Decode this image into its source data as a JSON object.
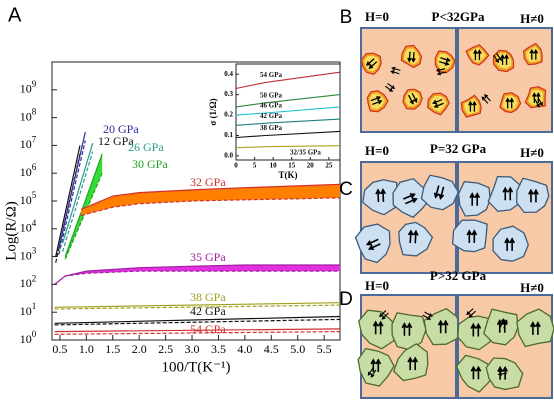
{
  "chart_data": [
    {
      "type": "line",
      "panel_label": "A",
      "ylabel": "Log(R/Ω)",
      "xlabel": "100/T(K⁻¹)",
      "log_y": true,
      "xlim": [
        0.35,
        5.8
      ],
      "ylim": [
        1,
        10000000000
      ],
      "xticks": [
        0.5,
        {
          "value": 1,
          "label": "1.0"
        },
        1.5,
        {
          "value": 2,
          "label": "2.0"
        },
        2.5,
        {
          "value": 3,
          "label": "3.0"
        },
        3.5,
        {
          "value": 4,
          "label": "4.0"
        },
        4.5,
        {
          "value": 5,
          "label": "5.0"
        },
        5.5
      ],
      "yticks": [
        {
          "value": 1,
          "label": "10",
          "power": "0"
        },
        {
          "value": 10,
          "label": "10",
          "power": "1"
        },
        {
          "value": 100,
          "label": "10",
          "power": "2"
        },
        {
          "value": 1000,
          "label": "10",
          "power": "3"
        },
        {
          "value": 10000,
          "label": "10",
          "power": "4"
        },
        {
          "value": 100000,
          "label": "10",
          "power": "5"
        },
        {
          "value": 1000000,
          "label": "10",
          "power": "6"
        },
        {
          "value": 10000000,
          "label": "10",
          "power": "7"
        },
        {
          "value": 100000000,
          "label": "10",
          "power": "8"
        },
        {
          "value": 1000000000,
          "label": "10",
          "power": "9"
        }
      ],
      "series": [
        {
          "name": "12 GPa",
          "color": "#111111",
          "x": [
            0.42,
            0.88
          ],
          "values": [
            1000,
            10000000
          ],
          "low": [
            600,
            5000000
          ]
        },
        {
          "name": "20 GPa",
          "color": "#2a2a9a",
          "x": [
            0.48,
            0.98
          ],
          "values": [
            2000,
            30000000
          ],
          "low": [
            1200,
            15000000
          ]
        },
        {
          "name": "26 GPa",
          "color": "#2a9a90",
          "x": [
            0.55,
            1.12
          ],
          "values": [
            3000,
            12000000
          ],
          "low": [
            1500,
            6000000
          ]
        },
        {
          "name": "30 GPa",
          "color": "#22a022",
          "fill": "#33dd33",
          "x": [
            0.6,
            1.3
          ],
          "values": [
            1000,
            5000000
          ],
          "low": [
            800,
            1000000
          ]
        },
        {
          "name": "32 GPa",
          "color": "#d03030",
          "fill": "#ff8000",
          "x": [
            0.9,
            1.5,
            2,
            3,
            4,
            5,
            5.8
          ],
          "values": [
            50000,
            150000,
            200000,
            250000,
            300000,
            350000,
            400000
          ],
          "low": [
            30000,
            60000,
            80000,
            100000,
            110000,
            120000,
            130000
          ]
        },
        {
          "name": "35 GPa",
          "color": "#a020a0",
          "fill": "#e030e0",
          "x": [
            0.4,
            0.6,
            1,
            2,
            3,
            4,
            5,
            5.8
          ],
          "values": [
            100,
            200,
            300,
            400,
            450,
            500,
            500,
            500
          ],
          "low": [
            100,
            200,
            250,
            300,
            300,
            300,
            300,
            300
          ]
        },
        {
          "name": "38 GPa",
          "color": "#a0a020",
          "x": [
            0.4,
            5.8
          ],
          "values": [
            15,
            22
          ],
          "low": [
            13,
            18
          ]
        },
        {
          "name": "42 GPa",
          "color": "#111111",
          "x": [
            0.4,
            5.8
          ],
          "values": [
            4,
            7
          ],
          "low": [
            3.5,
            5.5
          ]
        },
        {
          "name": "54 GPa",
          "color": "#d03030",
          "x": [
            0.4,
            5.8
          ],
          "values": [
            2,
            2.5
          ],
          "low": [
            1.6,
            2
          ]
        }
      ]
    },
    {
      "type": "line",
      "ylabel": "σ (1/Ω)",
      "xlabel": "T(K)",
      "xlim": [
        0,
        28
      ],
      "ylim": [
        -0.02,
        0.45
      ],
      "xticks": [
        0,
        5,
        10,
        15,
        20,
        25
      ],
      "yticks": [
        {
          "value": 0,
          "label": "0.0"
        },
        0.1,
        0.2,
        0.3,
        0.4
      ],
      "series": [
        {
          "name": "54 GPa",
          "color": "#c03030",
          "x": [
            0,
            8,
            28
          ],
          "values": [
            0.33,
            0.36,
            0.41
          ]
        },
        {
          "name": "50 GPa",
          "color": "#2a8a3a",
          "x": [
            0,
            8,
            28
          ],
          "values": [
            0.24,
            0.26,
            0.3
          ]
        },
        {
          "name": "46 GPa",
          "color": "#20c0d0",
          "x": [
            0,
            8,
            28
          ],
          "values": [
            0.2,
            0.21,
            0.24
          ]
        },
        {
          "name": "42 GPa",
          "color": "#208080",
          "x": [
            0,
            8,
            28
          ],
          "values": [
            0.15,
            0.16,
            0.18
          ]
        },
        {
          "name": "38 GPa",
          "color": "#111111",
          "x": [
            0,
            8,
            28
          ],
          "values": [
            0.09,
            0.1,
            0.12
          ]
        },
        {
          "name": "32/35 GPa",
          "color": "#b0a020",
          "x": [
            0,
            8,
            28
          ],
          "values": [
            0.04,
            0.045,
            0.05
          ]
        }
      ]
    }
  ],
  "diagrams": [
    {
      "label": "B",
      "left": "H=0",
      "title": "P<32GPa",
      "right": "H≠0"
    },
    {
      "label": "C",
      "left": "H=0",
      "title": "P=32 GPa",
      "right": "H≠0"
    },
    {
      "label": "D",
      "left": "H=0",
      "title": "P>32 GPa",
      "right": "H≠0"
    }
  ]
}
